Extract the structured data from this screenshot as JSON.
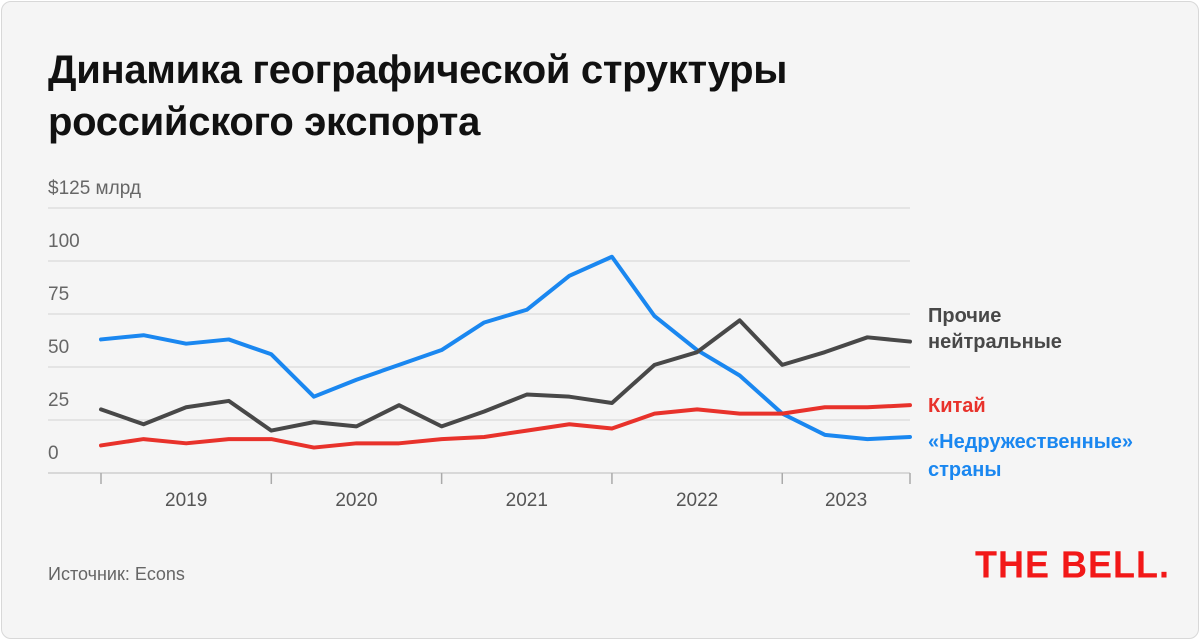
{
  "title_line1": "Динамика географической структуры",
  "title_line2": "российского экспорта",
  "source": "Источник: Econs",
  "logo": "THE BELL.",
  "chart_data": {
    "type": "line",
    "title": "Динамика географической структуры российского экспорта",
    "ylabel": "$125 млрд",
    "ylim": [
      0,
      125
    ],
    "yticks": [
      0,
      25,
      50,
      75,
      100,
      125
    ],
    "ytick_labels": [
      "0",
      "25",
      "50",
      "75",
      "100",
      "$125 млрд"
    ],
    "x": [
      "2019Q1",
      "2019Q2",
      "2019Q3",
      "2019Q4",
      "2020Q1",
      "2020Q2",
      "2020Q3",
      "2020Q4",
      "2021Q1",
      "2021Q2",
      "2021Q3",
      "2021Q4",
      "2022Q1",
      "2022Q2",
      "2022Q3",
      "2022Q4",
      "2023Q1",
      "2023Q2",
      "2023Q3",
      "2023Q4"
    ],
    "year_labels": [
      "2019",
      "2020",
      "2021",
      "2022",
      "2023"
    ],
    "grid": true,
    "series": [
      {
        "name": "«Недружественные» страны",
        "label_lines": [
          "«Недружественные»",
          "страны"
        ],
        "color": "#1a87f0",
        "values": [
          63,
          65,
          61,
          63,
          56,
          36,
          44,
          51,
          58,
          71,
          77,
          93,
          102,
          74,
          58,
          46,
          28,
          18,
          16,
          17
        ]
      },
      {
        "name": "Прочие нейтральные",
        "label_lines": [
          "Прочие",
          "нейтральные"
        ],
        "color": "#484848",
        "values": [
          30,
          23,
          31,
          34,
          20,
          24,
          22,
          32,
          22,
          29,
          37,
          36,
          33,
          51,
          57,
          72,
          51,
          57,
          64,
          62
        ]
      },
      {
        "name": "Китай",
        "label_lines": [
          "Китай"
        ],
        "color": "#e8322b",
        "values": [
          13,
          16,
          14,
          16,
          16,
          12,
          14,
          14,
          16,
          17,
          20,
          23,
          21,
          28,
          30,
          28,
          28,
          31,
          31,
          32
        ]
      }
    ]
  }
}
